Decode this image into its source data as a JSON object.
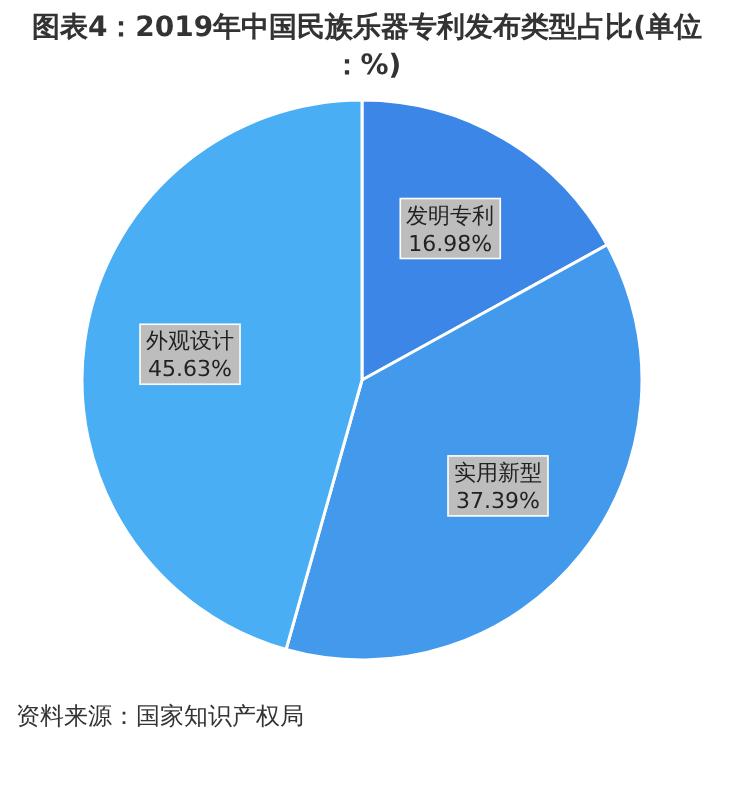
{
  "chart_data": {
    "type": "pie",
    "title": "图表4：2019年中国民族乐器专利发布类型占比(单位：%)",
    "categories": [
      "发明专利",
      "实用新型",
      "外观设计"
    ],
    "values": [
      16.98,
      37.39,
      45.63
    ],
    "value_labels": [
      "16.98%",
      "37.39%",
      "45.63%"
    ],
    "colors": [
      "#3b86e6",
      "#4399ec",
      "#4aaef4"
    ],
    "annotations": [
      "资料来源：国家知识产权局"
    ]
  }
}
